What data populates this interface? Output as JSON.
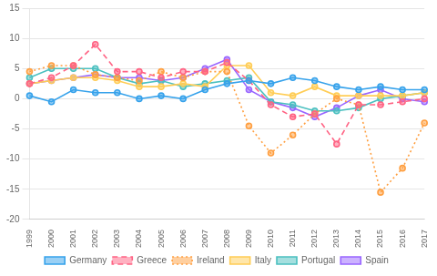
{
  "chart_data": {
    "type": "line",
    "categories": [
      "1999",
      "2000",
      "2001",
      "2002",
      "2003",
      "2004",
      "2005",
      "2006",
      "2007",
      "2008",
      "2009",
      "2010",
      "2011",
      "2012",
      "2013",
      "2014",
      "2015",
      "2016",
      "2017"
    ],
    "series": [
      {
        "name": "Germany",
        "line_style": "solid",
        "marker": "circle",
        "values": [
          0.5,
          -0.5,
          1.5,
          1.0,
          1.0,
          0.0,
          0.5,
          0.0,
          1.5,
          2.5,
          3.0,
          2.5,
          3.5,
          3.0,
          2.0,
          1.5,
          2.0,
          1.5,
          1.5
        ]
      },
      {
        "name": "Greece",
        "line_style": "dashed",
        "marker": "circle",
        "values": [
          2.5,
          3.5,
          5.5,
          9.0,
          4.5,
          4.5,
          3.5,
          4.5,
          4.5,
          6.0,
          3.0,
          -1.0,
          -3.0,
          -2.5,
          -7.5,
          -1.0,
          -1.0,
          -0.5,
          0.0
        ]
      },
      {
        "name": "Ireland",
        "line_style": "dotted",
        "marker": "circle",
        "values": [
          4.5,
          5.5,
          5.5,
          4.0,
          3.5,
          3.0,
          4.5,
          3.5,
          4.5,
          4.5,
          -4.5,
          -9.0,
          -6.0,
          -2.5,
          0.0,
          -1.0,
          -15.5,
          -11.5,
          -4.0
        ]
      },
      {
        "name": "Italy",
        "line_style": "solid",
        "marker": "circle",
        "values": [
          2.5,
          3.0,
          3.5,
          3.5,
          3.0,
          2.0,
          2.0,
          2.5,
          2.0,
          5.5,
          5.5,
          1.0,
          0.5,
          2.0,
          0.5,
          0.5,
          0.5,
          0.5,
          1.0
        ]
      },
      {
        "name": "Portugal",
        "line_style": "solid",
        "marker": "circle",
        "values": [
          3.5,
          5.0,
          5.0,
          5.0,
          3.5,
          2.5,
          3.0,
          2.0,
          2.5,
          3.0,
          3.5,
          -0.5,
          -1.0,
          -2.0,
          -2.0,
          -1.5,
          0.0,
          0.5,
          1.0
        ]
      },
      {
        "name": "Spain",
        "line_style": "solid",
        "marker": "circle",
        "values": [
          2.5,
          3.0,
          3.5,
          4.0,
          3.5,
          3.5,
          3.0,
          3.5,
          5.0,
          6.5,
          1.5,
          -0.5,
          -1.5,
          -3.0,
          -1.5,
          0.5,
          1.5,
          0.0,
          -0.5
        ]
      }
    ],
    "ylim": [
      -20,
      15
    ],
    "yticks": [
      -20,
      -15,
      -10,
      -5,
      0,
      5,
      10,
      15
    ],
    "grid": "y",
    "legend": "bottom"
  }
}
